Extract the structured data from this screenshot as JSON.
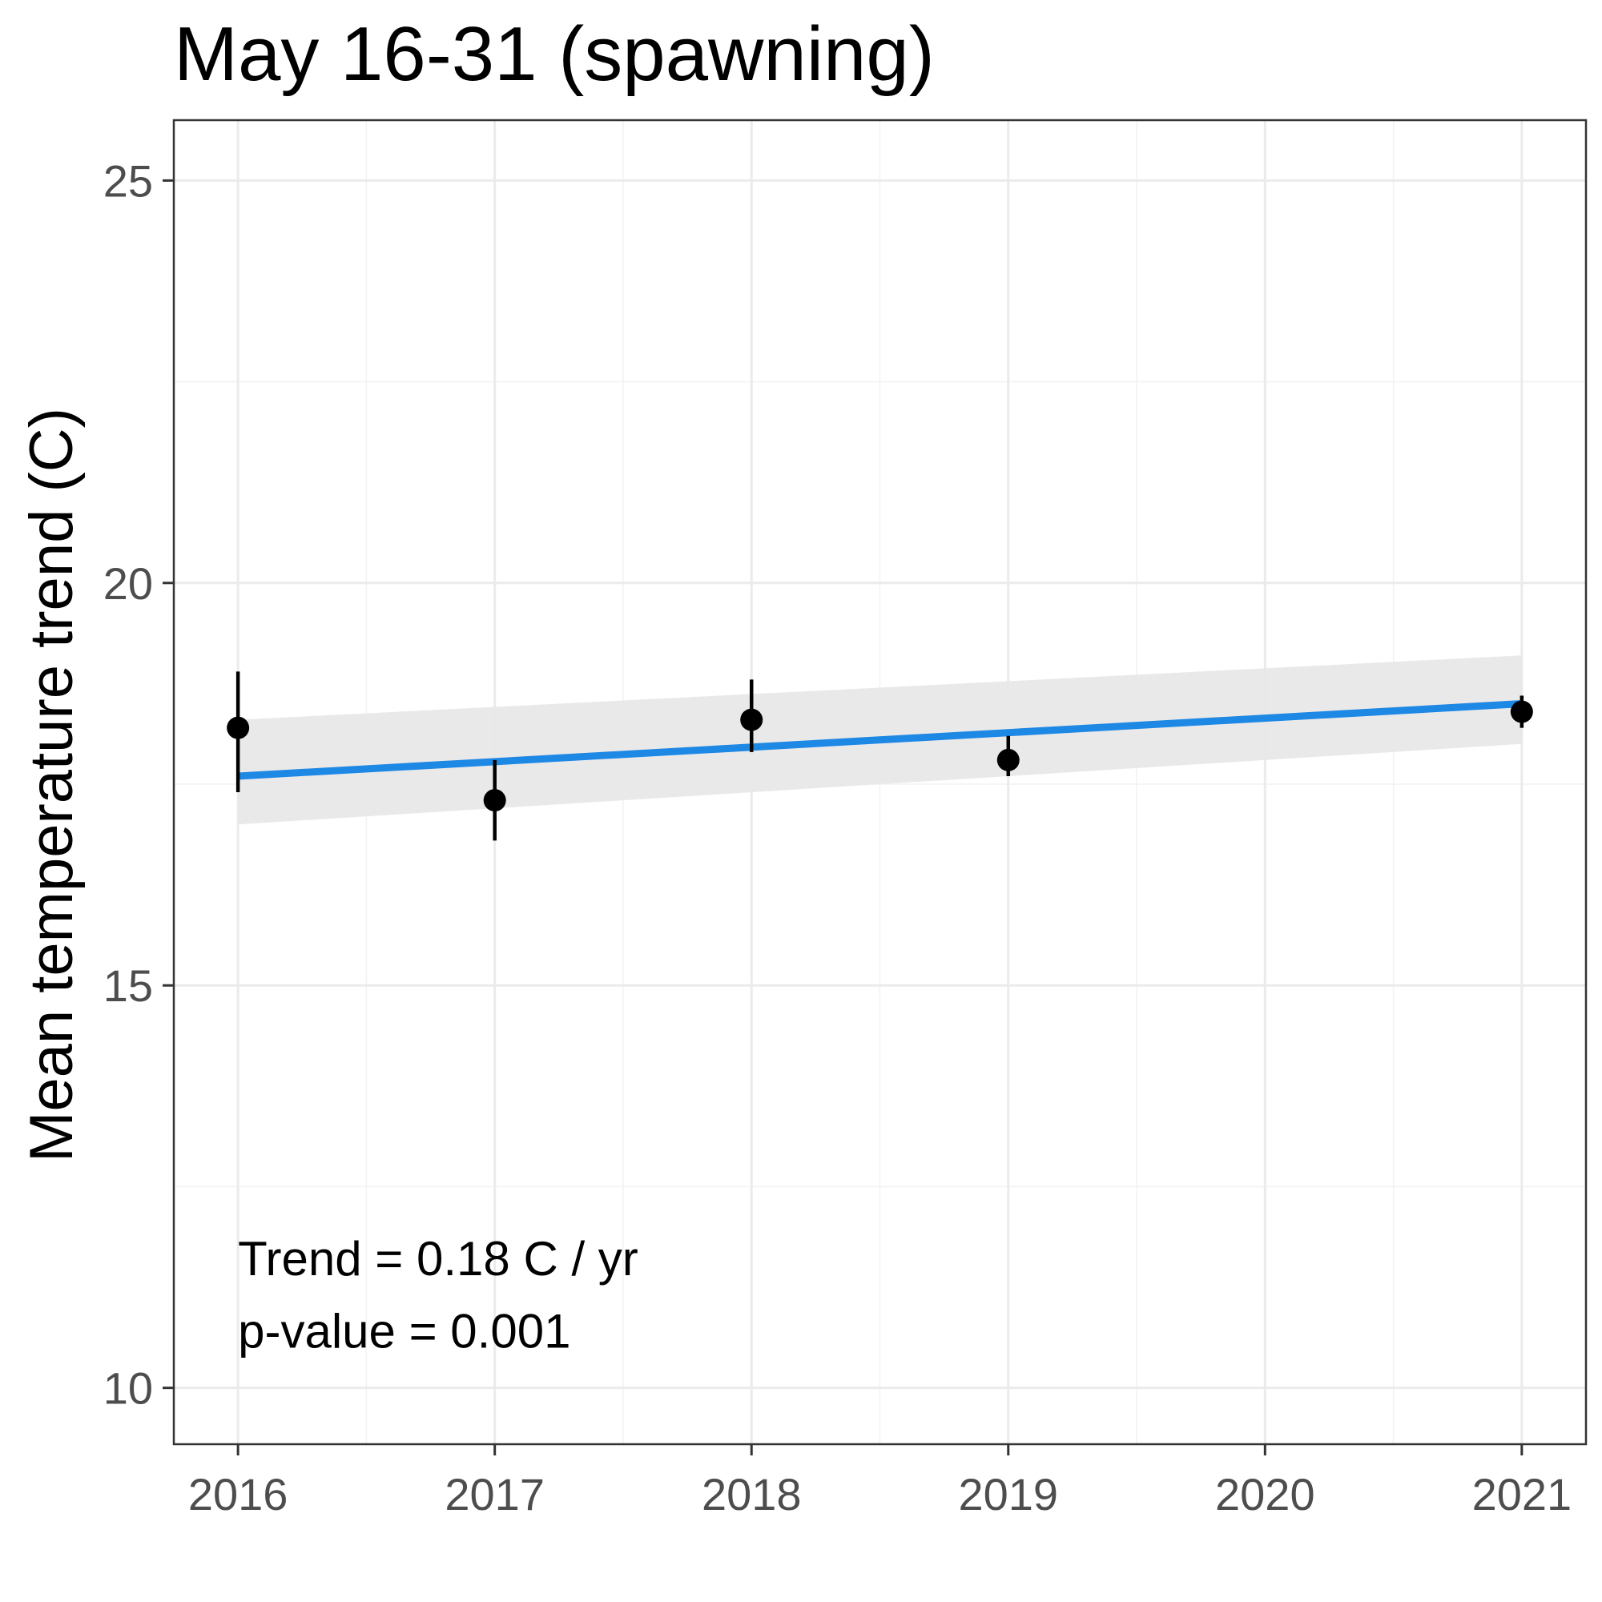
{
  "chart_data": {
    "type": "scatter",
    "title": "May 16-31 (spawning)",
    "xlabel": "",
    "ylabel": "Mean temperature trend (C)",
    "xlim": [
      2015.75,
      2021.25
    ],
    "ylim": [
      9.3,
      25.75
    ],
    "x_ticks": [
      2016,
      2017,
      2018,
      2019,
      2020,
      2021
    ],
    "x_tick_labels": [
      "2016",
      "2017",
      "2018",
      "2019",
      "2020",
      "2021"
    ],
    "y_ticks": [
      10,
      15,
      20,
      25
    ],
    "y_tick_labels": [
      "10",
      "15",
      "20",
      "25"
    ],
    "grid": true,
    "points": [
      {
        "x": 2016,
        "y": 18.2,
        "ymin": 17.4,
        "ymax": 18.9
      },
      {
        "x": 2017,
        "y": 17.3,
        "ymin": 16.8,
        "ymax": 17.8
      },
      {
        "x": 2018,
        "y": 18.3,
        "ymin": 17.9,
        "ymax": 18.8
      },
      {
        "x": 2019,
        "y": 17.8,
        "ymin": 17.6,
        "ymax": 18.1
      },
      {
        "x": 2021,
        "y": 18.4,
        "ymin": 18.2,
        "ymax": 18.6
      }
    ],
    "trend_line": {
      "x": [
        2016,
        2021
      ],
      "y": [
        17.6,
        18.5
      ],
      "color": "#1e88e5"
    },
    "confidence_band": {
      "x": [
        2016,
        2021
      ],
      "lower": [
        17.0,
        18.0
      ],
      "upper": [
        18.3,
        19.1
      ],
      "color": "#e8e8e8"
    },
    "annotations": [
      {
        "text": "Trend = 0.18 C / yr",
        "x": 2016,
        "y": 11.4
      },
      {
        "text": "p-value = 0.001",
        "x": 2016,
        "y": 10.5
      }
    ]
  }
}
